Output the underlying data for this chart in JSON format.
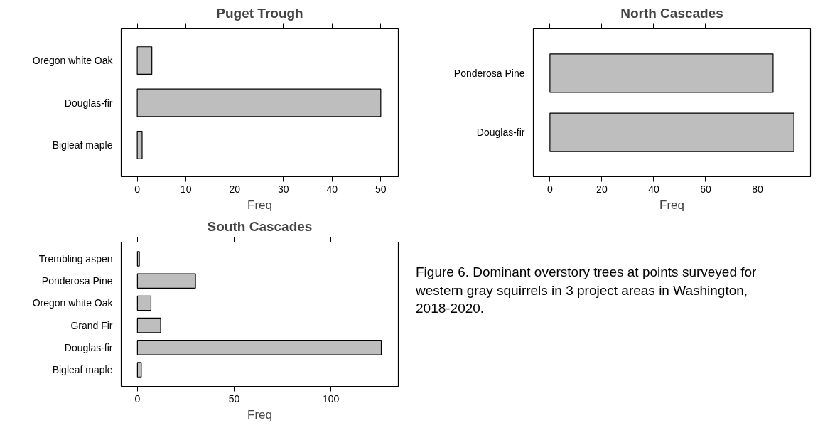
{
  "chart_data": [
    {
      "type": "bar",
      "orientation": "horizontal",
      "title": "Puget Trough",
      "xlabel": "Freq",
      "categories": [
        "Oregon white Oak",
        "Douglas-fir",
        "Bigleaf maple"
      ],
      "values": [
        3,
        50,
        1
      ],
      "color": "#bebebe",
      "xlim": [
        -3.3,
        53.6
      ],
      "xticks": [
        0,
        10,
        20,
        30,
        40,
        50
      ]
    },
    {
      "type": "bar",
      "orientation": "horizontal",
      "title": "North Cascades",
      "xlabel": "Freq",
      "categories": [
        "Ponderosa Pine",
        "Douglas-fir"
      ],
      "values": [
        86,
        94
      ],
      "color": "#bebebe",
      "xlim": [
        -6.4,
        100.4
      ],
      "xticks": [
        0,
        20,
        40,
        60,
        80
      ]
    },
    {
      "type": "bar",
      "orientation": "horizontal",
      "title": "South Cascades",
      "xlabel": "Freq",
      "categories": [
        "Trembling aspen",
        "Ponderosa Pine",
        "Oregon white Oak",
        "Grand Fir",
        "Douglas-fir",
        "Bigleaf maple"
      ],
      "values": [
        1,
        30,
        7,
        12,
        126,
        2
      ],
      "color": "#bebebe",
      "xlim": [
        -8.4,
        134.8
      ],
      "xticks": [
        0,
        50,
        100
      ]
    },
    {
      "type": "other",
      "annotations": [
        "Figure 6. Dominant overstory trees at points surveyed for western gray squirrels in 3 project areas in Washington, 2018-2020."
      ]
    }
  ]
}
